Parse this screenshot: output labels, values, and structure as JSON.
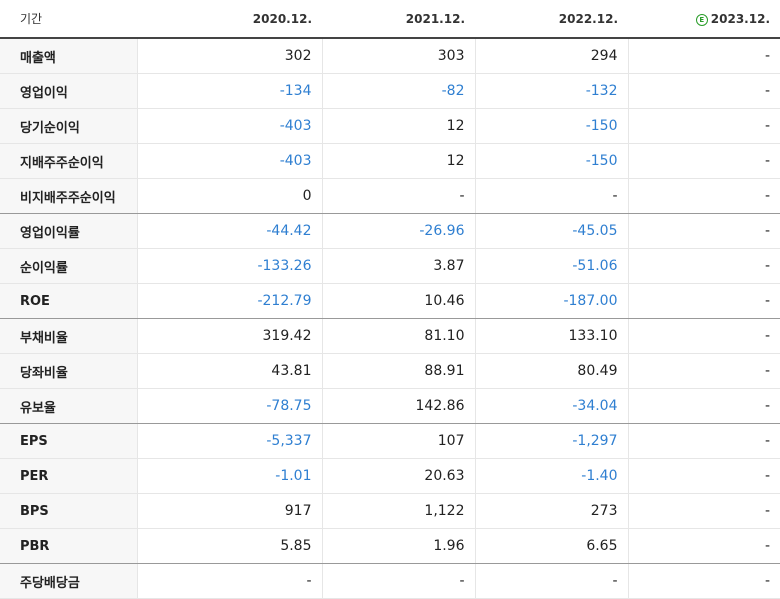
{
  "header": {
    "period_label": "기간",
    "estimate_badge": "E",
    "columns": [
      "2020.12.",
      "2021.12.",
      "2022.12.",
      "2023.12."
    ]
  },
  "rows": [
    {
      "label": "매출액",
      "values": [
        "302",
        "303",
        "294",
        "-"
      ]
    },
    {
      "label": "영업이익",
      "values": [
        "-134",
        "-82",
        "-132",
        "-"
      ]
    },
    {
      "label": "당기순이익",
      "values": [
        "-403",
        "12",
        "-150",
        "-"
      ]
    },
    {
      "label": "지배주주순이익",
      "values": [
        "-403",
        "12",
        "-150",
        "-"
      ]
    },
    {
      "label": "비지배주주순이익",
      "values": [
        "0",
        "-",
        "-",
        "-"
      ]
    },
    {
      "label": "영업이익률",
      "values": [
        "-44.42",
        "-26.96",
        "-45.05",
        "-"
      ]
    },
    {
      "label": "순이익률",
      "values": [
        "-133.26",
        "3.87",
        "-51.06",
        "-"
      ]
    },
    {
      "label": "ROE",
      "values": [
        "-212.79",
        "10.46",
        "-187.00",
        "-"
      ]
    },
    {
      "label": "부채비율",
      "values": [
        "319.42",
        "81.10",
        "133.10",
        "-"
      ]
    },
    {
      "label": "당좌비율",
      "values": [
        "43.81",
        "88.91",
        "80.49",
        "-"
      ]
    },
    {
      "label": "유보율",
      "values": [
        "-78.75",
        "142.86",
        "-34.04",
        "-"
      ]
    },
    {
      "label": "EPS",
      "values": [
        "-5,337",
        "107",
        "-1,297",
        "-"
      ]
    },
    {
      "label": "PER",
      "values": [
        "-1.01",
        "20.63",
        "-1.40",
        "-"
      ]
    },
    {
      "label": "BPS",
      "values": [
        "917",
        "1,122",
        "273",
        "-"
      ]
    },
    {
      "label": "PBR",
      "values": [
        "5.85",
        "1.96",
        "6.65",
        "-"
      ]
    },
    {
      "label": "주당배당금",
      "values": [
        "-",
        "-",
        "-",
        "-"
      ]
    }
  ],
  "colors": {
    "negative": "#2f7fd1",
    "estimate": "#2a9d2a"
  }
}
